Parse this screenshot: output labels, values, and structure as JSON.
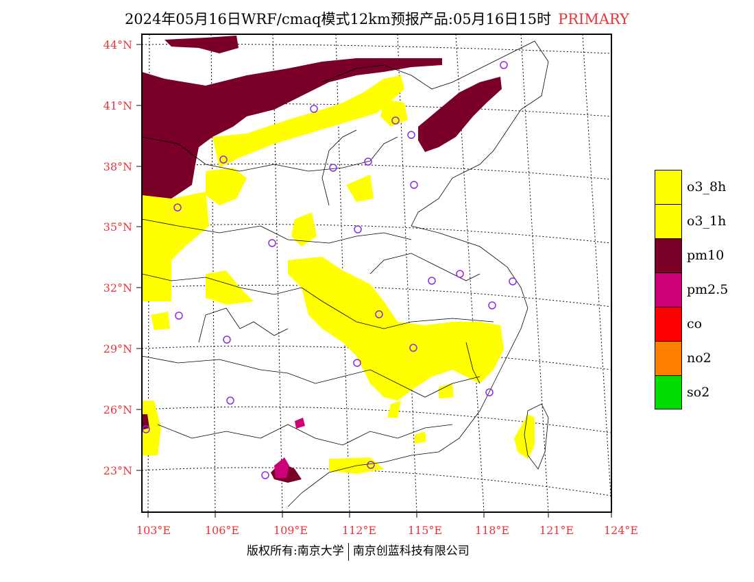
{
  "title": {
    "text": "2024年05月16日WRF/cmaq模式12km预报产品:05月16日15时",
    "tag": "PRIMARY",
    "tag_color": "#e8333a"
  },
  "map": {
    "lat_labels": [
      "44°N",
      "41°N",
      "38°N",
      "35°N",
      "32°N",
      "29°N",
      "26°N",
      "23°N"
    ],
    "lon_labels": [
      "103°E",
      "106°E",
      "109°E",
      "112°E",
      "115°E",
      "118°E",
      "121°E",
      "124°E"
    ],
    "label_color": "#e8333a"
  },
  "legend": {
    "items": [
      {
        "label": "o3_8h",
        "color": "#ffff00"
      },
      {
        "label": "o3_1h",
        "color": "#ffff00"
      },
      {
        "label": "pm10",
        "color": "#7a0028"
      },
      {
        "label": "pm2.5",
        "color": "#cc0077"
      },
      {
        "label": "co",
        "color": "#ff0000"
      },
      {
        "label": "no2",
        "color": "#ff7f00"
      },
      {
        "label": "so2",
        "color": "#00dd00"
      }
    ]
  },
  "footer": {
    "left": "版权所有:南京大学",
    "right": "南京创蓝科技有限公司"
  }
}
